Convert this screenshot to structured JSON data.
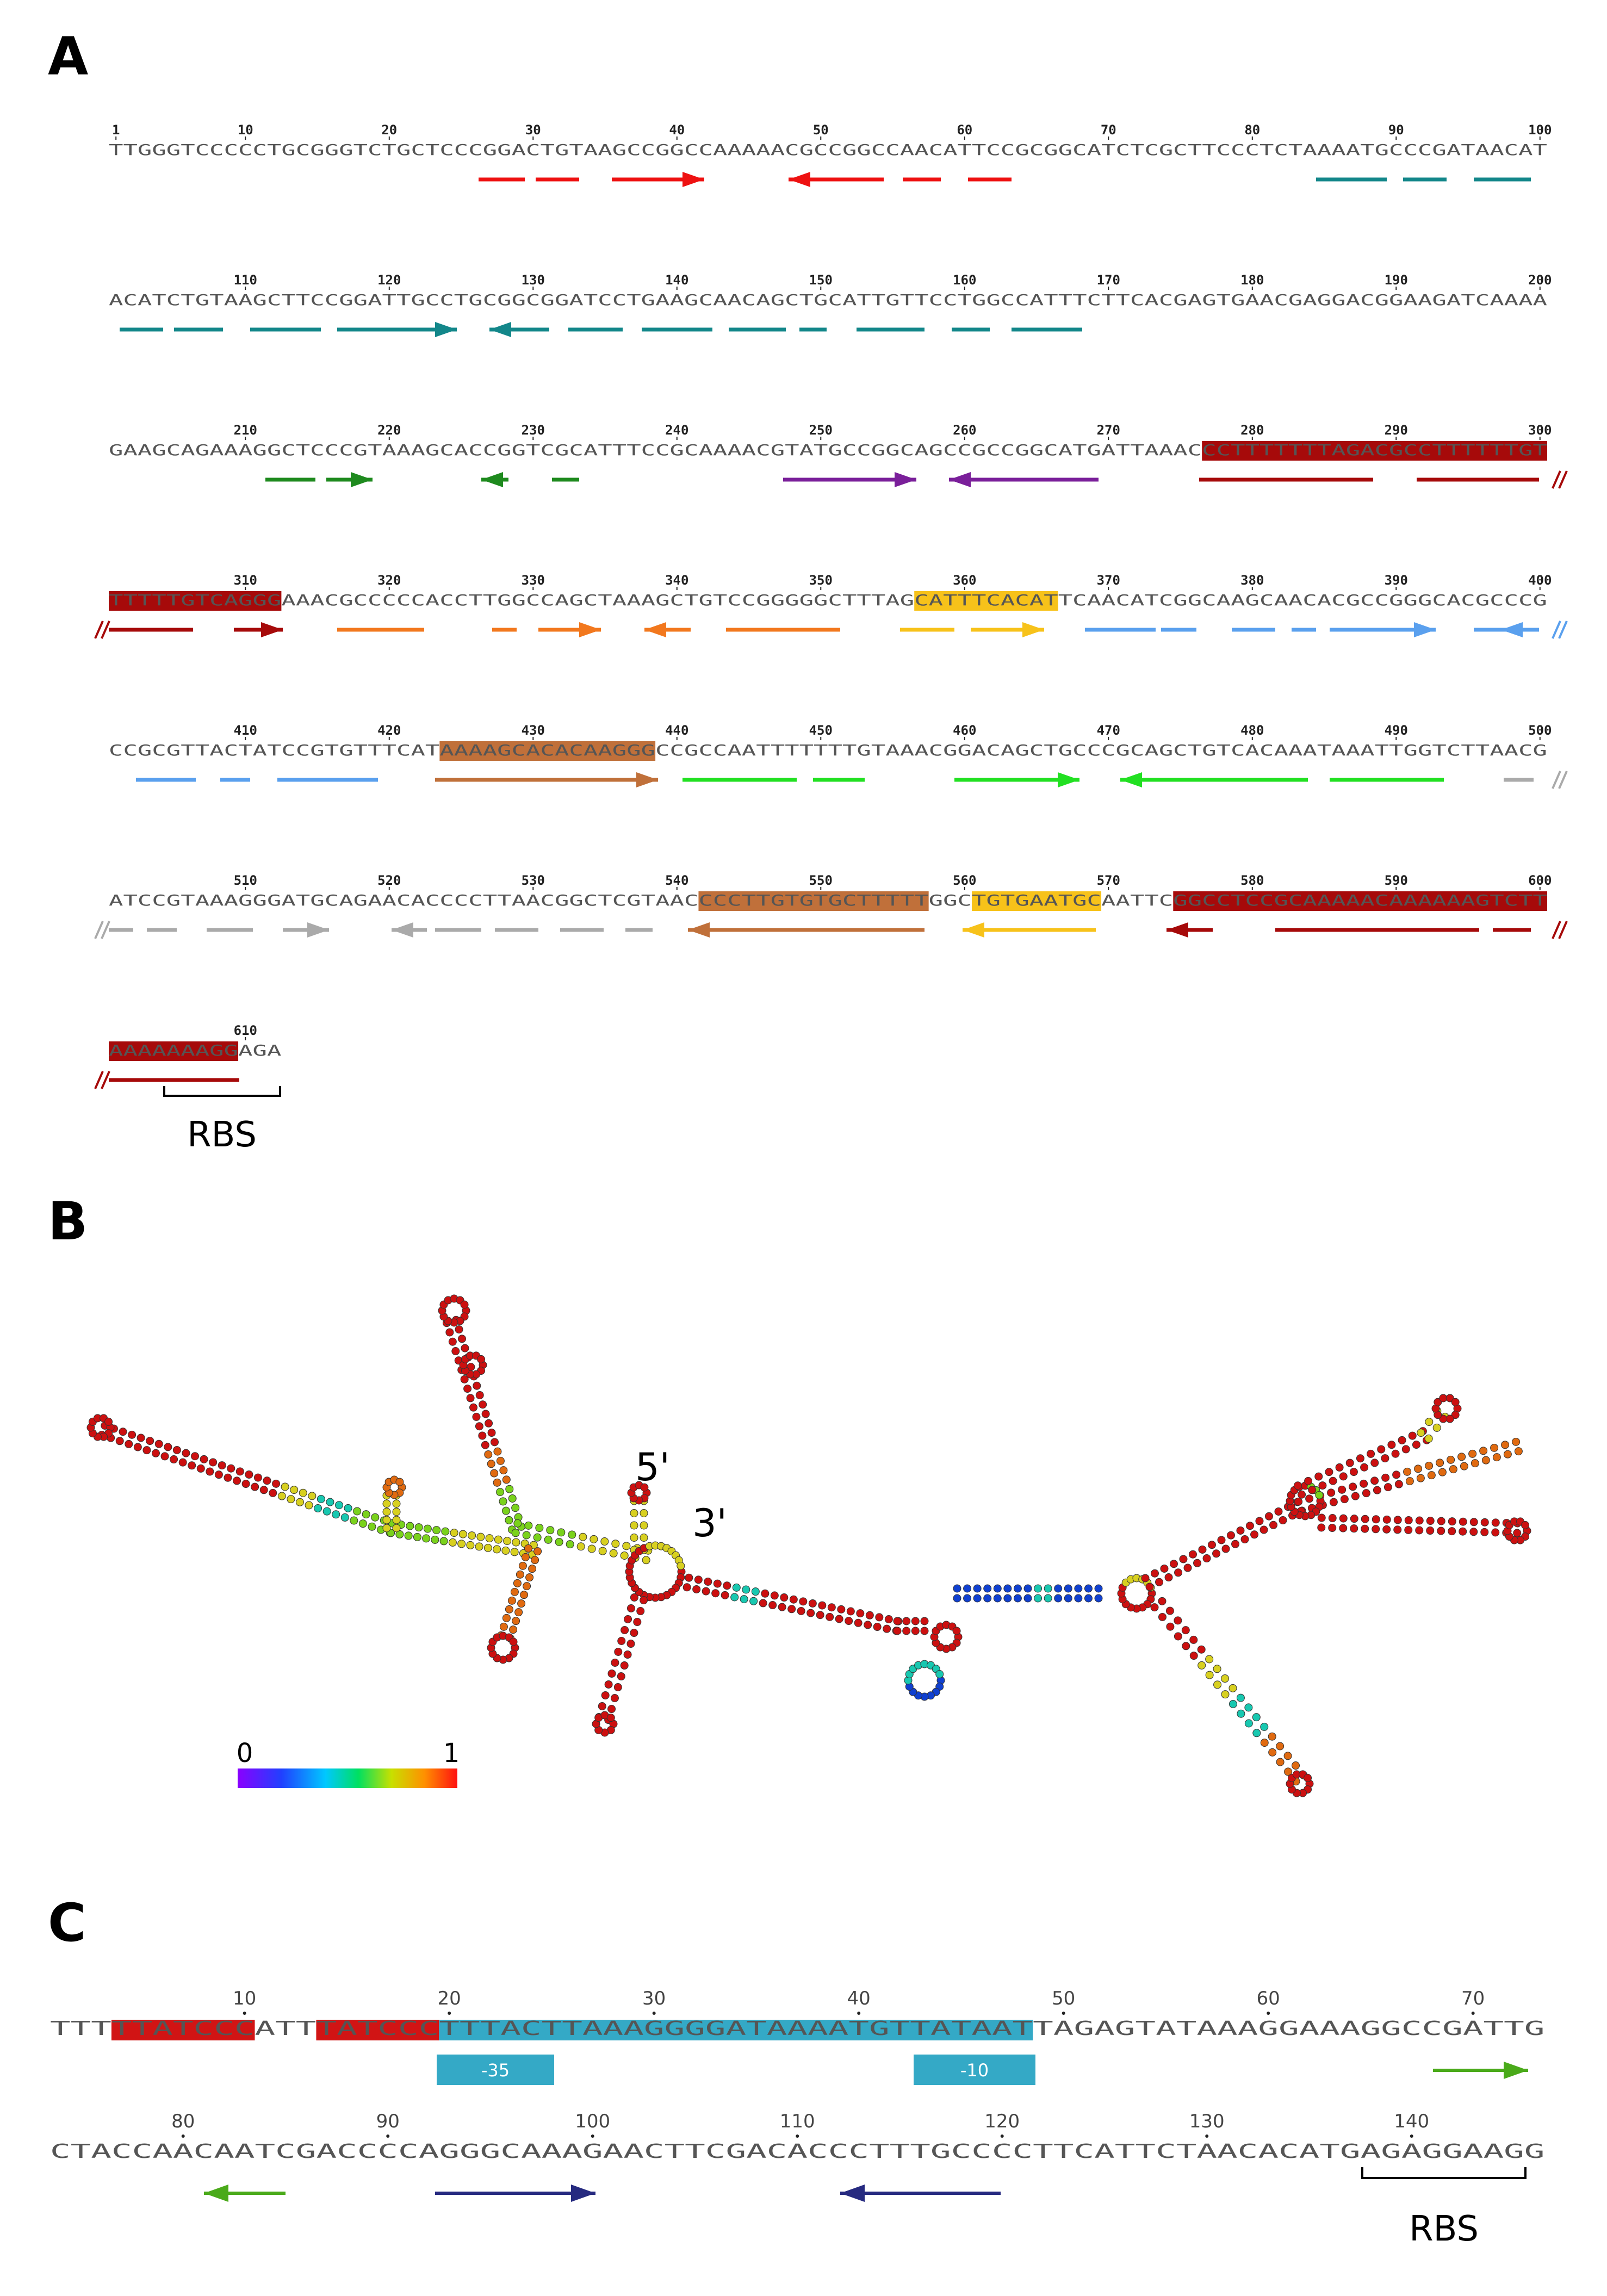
{
  "panels": {
    "a": "A",
    "b": "B",
    "c": "C"
  },
  "panel_a": {
    "rows": [
      {
        "start": 1,
        "seq": "TTGGGTCCCCCTGCGGGTCTGCTCCCGGACTGTAAGCCGGCCAAAAACGCCGGCCAACATTCCGCGGCATCTCGCTTCCCTCTAAAATGCCCGATAACAT"
      },
      {
        "start": 101,
        "seq": "ACATCTGTAAGCTTCCGGATTGCCTGCGGCGGATCCTGAAGCAACAGCTGCATTGTTCCTGGCCATTTCTTCACGAGTGAACGAGGACGGAAGATCAAAA"
      },
      {
        "start": 201,
        "seq": "GAAGCAGAAAGGCTCCCGTAAAGCACCGGTCGCATTTCCGCAAAACGTATGCCGGCAGCCGCCGGCATGATTAAACCCTTTTTTTAGACGCCTTTTTTGT"
      },
      {
        "start": 301,
        "seq": "TTTTTGTCAGGGAAACGCCCCCACCTTGGCCAGCTAAAGCTGTCCGGGGGCTTTAGCATTTCACATTCAACATCGGCAAGCAACACGCCGGGCACGCCCG"
      },
      {
        "start": 401,
        "seq": "CCGCGTTACTATCCGTGTTTCATAAAAGCACACAAGGGCCGCCAATTTTTTTGTAAACGGACAGCTGCCCGCAGCTGTCACAAATAAATTGGTCTTAACG"
      },
      {
        "start": 501,
        "seq": "ATCCGTAAAGGGATGCAGAACACCCCTTAACGGCTCGTAACCCCTTGTGTGCTTTTTGGCTGTGAATGCAATTCGGCCTCCGCAAAAACAAAAAAGTCTT"
      },
      {
        "start": 601,
        "seq": "AAAAAAAGGAGA"
      }
    ],
    "rbs_label": "RBS"
  },
  "panel_b": {
    "five_prime": "5'",
    "three_prime": "3'",
    "scale_min": "0",
    "scale_max": "1"
  },
  "panel_c": {
    "rows": [
      {
        "start": 1,
        "seq": "TTTTTATCCCATTTATCCCTTTACTTAAAGGGGATAAAATGTTATAATTAGAGTATAAAGGAAAGGCCGATTG"
      },
      {
        "start": 74,
        "seq": "CTACCAACAATCGACCCCAGGGCAAAGAACTTCGACACCCTTTGCCCCTTCATTCTAACACATGAGAGGAAGG"
      }
    ],
    "box_35": "-35",
    "box_10": "-10",
    "rbs_label": "RBS"
  },
  "colors": {
    "red": "#ee1111",
    "teal": "#13878a",
    "green": "#1e8a1e",
    "purple": "#7a1f9a",
    "darkred": "#a60a0a",
    "orange": "#f2781e",
    "gold": "#f7c21a",
    "lightblue": "#5aa0ee",
    "brown": "#c0703a",
    "brightgreen": "#22e022",
    "gray": "#aaaaaa",
    "cyan": "#34a9c6",
    "navy": "#262a80",
    "limegreen": "#4aaa1a"
  }
}
